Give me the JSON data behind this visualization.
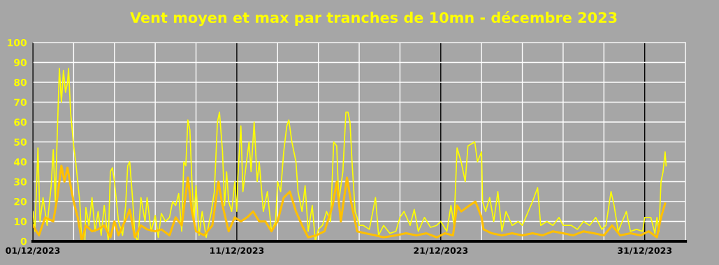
{
  "chart_data": {
    "type": "line",
    "title": "Vent moyen et max par tranches de 10mn - décembre 2023",
    "xlim": [
      "2023-12-01",
      "2024-01-02"
    ],
    "ylim": [
      0,
      100
    ],
    "xticks": [
      {
        "value": "2023-12-01",
        "label": "01/12/2023"
      },
      {
        "value": "2023-12-03",
        "label": null
      },
      {
        "value": "2023-12-05",
        "label": null
      },
      {
        "value": "2023-12-07",
        "label": null
      },
      {
        "value": "2023-12-09",
        "label": null
      },
      {
        "value": "2023-12-11",
        "label": "11/12/2023"
      },
      {
        "value": "2023-12-13",
        "label": null
      },
      {
        "value": "2023-12-15",
        "label": null
      },
      {
        "value": "2023-12-17",
        "label": null
      },
      {
        "value": "2023-12-19",
        "label": null
      },
      {
        "value": "2023-12-21",
        "label": "21/12/2023"
      },
      {
        "value": "2023-12-23",
        "label": null
      },
      {
        "value": "2023-12-25",
        "label": null
      },
      {
        "value": "2023-12-27",
        "label": null
      },
      {
        "value": "2023-12-29",
        "label": null
      },
      {
        "value": "2023-12-31",
        "label": "31/12/2023"
      },
      {
        "value": "2024-01-02",
        "label": null
      }
    ],
    "yticks": [
      0,
      10,
      20,
      30,
      40,
      50,
      60,
      70,
      80,
      90,
      100
    ],
    "grid": true,
    "legend": false,
    "marker": "none",
    "line_style": "solid",
    "series": [
      {
        "color": "#ffff00",
        "x": [
          "2023-12-01T00:00",
          "2023-12-01T02:24",
          "2023-12-01T06:00",
          "2023-12-01T08:24",
          "2023-12-01T12:00",
          "2023-12-01T16:48",
          "2023-12-01T21:36",
          "2023-12-02T00:00",
          "2023-12-02T02:24",
          "2023-12-02T04:48",
          "2023-12-02T07:12",
          "2023-12-02T09:36",
          "2023-12-02T12:00",
          "2023-12-02T14:24",
          "2023-12-02T16:48",
          "2023-12-02T18:00",
          "2023-12-02T20:24",
          "2023-12-03T00:00",
          "2023-12-03T02:24",
          "2023-12-03T04:48",
          "2023-12-03T07:12",
          "2023-12-03T09:36",
          "2023-12-03T13:12",
          "2023-12-03T14:24",
          "2023-12-03T18:00",
          "2023-12-03T21:36",
          "2023-12-04T01:12",
          "2023-12-04T04:48",
          "2023-12-04T08:24",
          "2023-12-04T12:00",
          "2023-12-04T16:48",
          "2023-12-04T19:12",
          "2023-12-04T21:36",
          "2023-12-05T00:00",
          "2023-12-05T04:48",
          "2023-12-05T09:36",
          "2023-12-05T13:12",
          "2023-12-05T15:36",
          "2023-12-05T18:00",
          "2023-12-05T21:36",
          "2023-12-06T00:00",
          "2023-12-06T03:36",
          "2023-12-06T07:12",
          "2023-12-06T12:00",
          "2023-12-06T14:24",
          "2023-12-06T19:12",
          "2023-12-07T00:00",
          "2023-12-07T03:36",
          "2023-12-07T07:12",
          "2023-12-07T12:00",
          "2023-12-07T16:48",
          "2023-12-07T20:24",
          "2023-12-08T00:00",
          "2023-12-08T03:36",
          "2023-12-08T07:12",
          "2023-12-08T09:36",
          "2023-12-08T12:00",
          "2023-12-08T14:24",
          "2023-12-08T16:48",
          "2023-12-08T19:12",
          "2023-12-08T21:36",
          "2023-12-09T00:00",
          "2023-12-09T03:36",
          "2023-12-09T07:12",
          "2023-12-09T12:00",
          "2023-12-09T18:00",
          "2023-12-09T21:36",
          "2023-12-10T01:12",
          "2023-12-10T03:36",
          "2023-12-10T07:12",
          "2023-12-10T09:36",
          "2023-12-10T12:00",
          "2023-12-10T14:24",
          "2023-12-10T18:00",
          "2023-12-10T21:36",
          "2023-12-11T00:00",
          "2023-12-11T01:12",
          "2023-12-11T04:48",
          "2023-12-11T07:12",
          "2023-12-11T12:00",
          "2023-12-11T14:24",
          "2023-12-11T16:48",
          "2023-12-11T20:24",
          "2023-12-12T00:00",
          "2023-12-12T02:24",
          "2023-12-12T07:12",
          "2023-12-12T12:00",
          "2023-12-12T16:48",
          "2023-12-12T21:36",
          "2023-12-13T00:00",
          "2023-12-13T03:36",
          "2023-12-13T07:12",
          "2023-12-13T10:48",
          "2023-12-13T13:12",
          "2023-12-13T16:48",
          "2023-12-13T21:36",
          "2023-12-14T00:00",
          "2023-12-14T04:48",
          "2023-12-14T08:24",
          "2023-12-14T12:00",
          "2023-12-14T16:48",
          "2023-12-14T20:24",
          "2023-12-15T00:00",
          "2023-12-15T04:48",
          "2023-12-15T09:36",
          "2023-12-15T14:24",
          "2023-12-15T18:00",
          "2023-12-15T21:36",
          "2023-12-16T00:00",
          "2023-12-16T04:48",
          "2023-12-16T08:24",
          "2023-12-16T10:48",
          "2023-12-16T13:12",
          "2023-12-16T15:36",
          "2023-12-16T19:12",
          "2023-12-16T21:36",
          "2023-12-17T00:00",
          "2023-12-17T04:48",
          "2023-12-17T12:00",
          "2023-12-17T19:12",
          "2023-12-17T22:48",
          "2023-12-18T04:48",
          "2023-12-18T12:00",
          "2023-12-18T19:12",
          "2023-12-19T00:00",
          "2023-12-19T04:48",
          "2023-12-19T12:00",
          "2023-12-19T16:48",
          "2023-12-19T21:36",
          "2023-12-20T04:48",
          "2023-12-20T12:00",
          "2023-12-20T19:12",
          "2023-12-21T00:00",
          "2023-12-21T07:12",
          "2023-12-21T12:00",
          "2023-12-21T15:36",
          "2023-12-21T19:12",
          "2023-12-22T00:00",
          "2023-12-22T04:48",
          "2023-12-22T08:00",
          "2023-12-22T16:00",
          "2023-12-22T19:12",
          "2023-12-23T00:00",
          "2023-12-23T01:12",
          "2023-12-23T04:48",
          "2023-12-23T09:36",
          "2023-12-23T14:24",
          "2023-12-23T19:12",
          "2023-12-24T00:00",
          "2023-12-24T04:48",
          "2023-12-24T12:00",
          "2023-12-24T19:12",
          "2023-12-25T00:00",
          "2023-12-25T12:00",
          "2023-12-25T18:00",
          "2023-12-25T21:36",
          "2023-12-26T04:48",
          "2023-12-26T12:00",
          "2023-12-26T19:12",
          "2023-12-27T00:00",
          "2023-12-27T09:36",
          "2023-12-27T16:48",
          "2023-12-28T00:00",
          "2023-12-28T07:12",
          "2023-12-28T14:24",
          "2023-12-28T21:36",
          "2023-12-29T02:24",
          "2023-12-29T08:24",
          "2023-12-29T12:00",
          "2023-12-29T16:48",
          "2023-12-30T02:24",
          "2023-12-30T07:12",
          "2023-12-30T14:24",
          "2023-12-30T21:36",
          "2023-12-31T00:00",
          "2023-12-31T07:12",
          "2023-12-31T12:00",
          "2023-12-31T14:24",
          "2023-12-31T16:48",
          "2023-12-31T19:12",
          "2023-12-31T21:36",
          "2024-01-01T00:00",
          "2024-01-01T01:12"
        ],
        "values": [
          15,
          5,
          47,
          10,
          22,
          8,
          28,
          46,
          20,
          55,
          87,
          70,
          86,
          75,
          80,
          87,
          65,
          48,
          40,
          30,
          20,
          0,
          0,
          17,
          8,
          22,
          5,
          15,
          3,
          18,
          0,
          35,
          37,
          30,
          10,
          3,
          18,
          38,
          40,
          20,
          3,
          0,
          22,
          10,
          22,
          5,
          13,
          2,
          14,
          10,
          12,
          20,
          18,
          24,
          5,
          40,
          38,
          61,
          56,
          30,
          10,
          28,
          3,
          15,
          2,
          15,
          25,
          60,
          65,
          45,
          18,
          35,
          20,
          15,
          30,
          15,
          32,
          58,
          25,
          42,
          50,
          35,
          60,
          30,
          40,
          15,
          25,
          5,
          10,
          30,
          25,
          45,
          58,
          61,
          50,
          40,
          25,
          15,
          28,
          5,
          18,
          0,
          6,
          8,
          15,
          10,
          50,
          48,
          20,
          35,
          65,
          65,
          60,
          40,
          15,
          12,
          8,
          8,
          6,
          22,
          3,
          8,
          4,
          5,
          12,
          15,
          8,
          16,
          5,
          12,
          7,
          8,
          10,
          5,
          18,
          8,
          47,
          40,
          30,
          48,
          50,
          40,
          45,
          20,
          15,
          22,
          10,
          25,
          5,
          15,
          8,
          10,
          8,
          20,
          27,
          8,
          10,
          8,
          12,
          8,
          8,
          6,
          10,
          8,
          12,
          6,
          8,
          25,
          18,
          5,
          15,
          5,
          6,
          5,
          12,
          12,
          4,
          12,
          5,
          30,
          35,
          45,
          38
        ]
      },
      {
        "color": "#ffc000",
        "x": [
          "2023-12-01T00:00",
          "2023-12-01T07:12",
          "2023-12-01T14:24",
          "2023-12-02T00:00",
          "2023-12-02T04:48",
          "2023-12-02T09:36",
          "2023-12-02T13:12",
          "2023-12-02T16:48",
          "2023-12-02T20:24",
          "2023-12-03T00:00",
          "2023-12-03T04:48",
          "2023-12-03T09:36",
          "2023-12-03T14:24",
          "2023-12-03T21:36",
          "2023-12-04T04:48",
          "2023-12-04T12:00",
          "2023-12-04T19:12",
          "2023-12-05T00:00",
          "2023-12-05T04:48",
          "2023-12-05T14:24",
          "2023-12-05T18:00",
          "2023-12-06T00:00",
          "2023-12-06T07:12",
          "2023-12-06T14:24",
          "2023-12-07T00:00",
          "2023-12-07T07:12",
          "2023-12-07T16:48",
          "2023-12-08T00:00",
          "2023-12-08T07:12",
          "2023-12-08T14:24",
          "2023-12-08T19:12",
          "2023-12-09T00:00",
          "2023-12-09T09:36",
          "2023-12-09T19:12",
          "2023-12-10T02:24",
          "2023-12-10T07:12",
          "2023-12-10T14:24",
          "2023-12-10T21:36",
          "2023-12-11T04:48",
          "2023-12-11T12:00",
          "2023-12-11T19:12",
          "2023-12-12T02:24",
          "2023-12-12T09:36",
          "2023-12-12T16:48",
          "2023-12-13T00:00",
          "2023-12-13T07:12",
          "2023-12-13T14:24",
          "2023-12-13T21:36",
          "2023-12-14T04:48",
          "2023-12-14T12:00",
          "2023-12-14T21:36",
          "2023-12-15T07:12",
          "2023-12-15T16:48",
          "2023-12-15T21:36",
          "2023-12-16T02:24",
          "2023-12-16T09:36",
          "2023-12-16T14:24",
          "2023-12-16T21:36",
          "2023-12-17T07:12",
          "2023-12-17T19:12",
          "2023-12-18T04:48",
          "2023-12-18T19:12",
          "2023-12-19T07:12",
          "2023-12-19T19:12",
          "2023-12-20T07:12",
          "2023-12-20T19:12",
          "2023-12-21T04:48",
          "2023-12-21T14:24",
          "2023-12-21T19:12",
          "2023-12-22T00:00",
          "2023-12-22T09:36",
          "2023-12-22T16:48",
          "2023-12-23T00:00",
          "2023-12-23T02:24",
          "2023-12-23T12:00",
          "2023-12-24T00:00",
          "2023-12-24T12:00",
          "2023-12-25T00:00",
          "2023-12-25T12:00",
          "2023-12-26T00:00",
          "2023-12-26T12:00",
          "2023-12-27T00:00",
          "2023-12-27T12:00",
          "2023-12-28T00:00",
          "2023-12-28T12:00",
          "2023-12-29T00:00",
          "2023-12-29T09:36",
          "2023-12-29T19:12",
          "2023-12-30T07:12",
          "2023-12-30T19:12",
          "2023-12-31T04:48",
          "2023-12-31T14:24",
          "2023-12-31T19:12",
          "2024-01-01T00:00"
        ],
        "values": [
          8,
          3,
          12,
          10,
          22,
          38,
          30,
          37,
          28,
          20,
          12,
          0,
          8,
          5,
          6,
          8,
          2,
          10,
          3,
          12,
          16,
          2,
          8,
          6,
          5,
          6,
          3,
          12,
          8,
          32,
          15,
          5,
          3,
          8,
          30,
          18,
          5,
          12,
          10,
          12,
          15,
          10,
          10,
          5,
          10,
          22,
          25,
          15,
          8,
          2,
          3,
          5,
          18,
          30,
          10,
          32,
          20,
          5,
          4,
          3,
          2,
          3,
          4,
          3,
          4,
          2,
          4,
          3,
          18,
          15,
          18,
          20,
          12,
          6,
          4,
          3,
          4,
          3,
          4,
          3,
          5,
          4,
          3,
          5,
          4,
          3,
          8,
          3,
          4,
          3,
          5,
          2,
          12,
          19
        ]
      }
    ]
  }
}
